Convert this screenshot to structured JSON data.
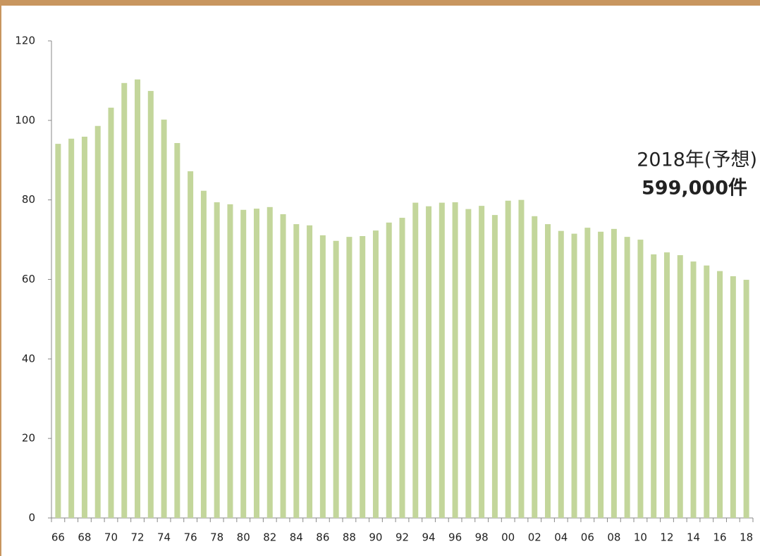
{
  "chart_data": {
    "type": "bar",
    "categories": [
      "66",
      null,
      "68",
      null,
      "70",
      null,
      "72",
      null,
      "74",
      null,
      "76",
      null,
      "78",
      null,
      "80",
      null,
      "82",
      null,
      "84",
      null,
      "86",
      null,
      "88",
      null,
      "90",
      null,
      "92",
      null,
      "94",
      null,
      "96",
      null,
      "98",
      null,
      "00",
      null,
      "02",
      null,
      "04",
      null,
      "06",
      null,
      "08",
      null,
      "10",
      null,
      "12",
      null,
      "14",
      null,
      "16",
      null,
      "18"
    ],
    "values": [
      94.1,
      95.4,
      95.9,
      98.6,
      103.2,
      109.4,
      110.3,
      107.4,
      100.2,
      94.3,
      87.2,
      82.3,
      79.4,
      78.9,
      77.5,
      77.8,
      78.2,
      76.4,
      73.9,
      73.6,
      71.1,
      69.7,
      70.7,
      70.9,
      72.3,
      74.3,
      75.5,
      79.3,
      78.4,
      79.3,
      79.4,
      77.7,
      78.5,
      76.2,
      79.8,
      80.0,
      75.9,
      73.9,
      72.2,
      71.5,
      73.0,
      72.0,
      72.7,
      70.7,
      70.0,
      66.3,
      66.8,
      66.1,
      64.5,
      63.5,
      62.1,
      60.8,
      59.9
    ],
    "color": "#c3d69b",
    "ylim": [
      0,
      120
    ],
    "yticks": [
      0,
      20,
      40,
      60,
      80,
      100,
      120
    ],
    "annotations": [
      "2018年(予想)",
      "599,000件"
    ]
  }
}
